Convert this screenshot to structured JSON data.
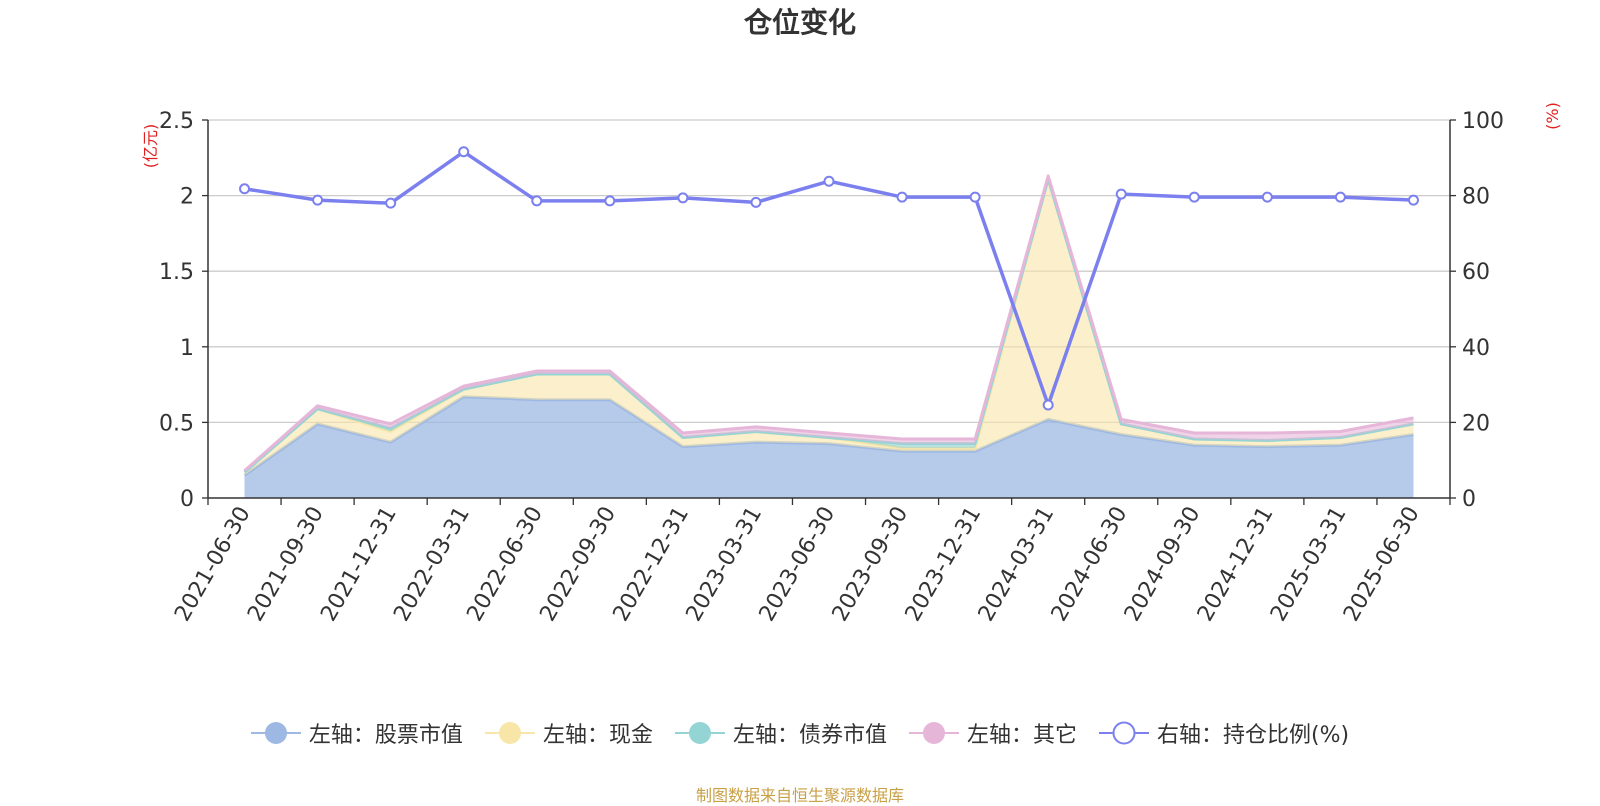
{
  "chart_data": {
    "type": "area",
    "title": "仓位变化",
    "y_left_label": "(亿元)",
    "y_right_label": "(%)",
    "y_left_lim": [
      0,
      2.5
    ],
    "y_left_ticks": [
      "0",
      "0.5",
      "1",
      "1.5",
      "2",
      "2.5"
    ],
    "y_right_lim": [
      0,
      100
    ],
    "y_right_ticks": [
      "0",
      "20",
      "40",
      "60",
      "80",
      "100"
    ],
    "grid": true,
    "legend_position": "bottom",
    "categories": [
      "2021-06-30",
      "2021-09-30",
      "2021-12-31",
      "2022-03-31",
      "2022-06-30",
      "2022-09-30",
      "2022-12-31",
      "2023-03-31",
      "2023-06-30",
      "2023-09-30",
      "2023-12-31",
      "2024-03-31",
      "2024-06-30",
      "2024-09-30",
      "2024-12-31",
      "2025-03-31",
      "2025-06-30"
    ],
    "stacked_series": [
      {
        "name": "左轴：股票市值",
        "axis": "left",
        "color": "#9db8e2",
        "values": [
          0.15,
          0.49,
          0.37,
          0.67,
          0.65,
          0.65,
          0.34,
          0.37,
          0.36,
          0.31,
          0.31,
          0.52,
          0.42,
          0.35,
          0.34,
          0.35,
          0.42
        ]
      },
      {
        "name": "左轴：现金",
        "axis": "left",
        "color": "#f8e6a8",
        "values": [
          0.02,
          0.1,
          0.07,
          0.05,
          0.17,
          0.17,
          0.06,
          0.07,
          0.04,
          0.02,
          0.02,
          1.59,
          0.07,
          0.04,
          0.04,
          0.05,
          0.07
        ]
      },
      {
        "name": "左轴：债券市值",
        "axis": "left",
        "color": "#94d4d4",
        "values": [
          0.0,
          0.0,
          0.02,
          0.0,
          0.0,
          0.0,
          0.0,
          0.0,
          0.0,
          0.03,
          0.03,
          0.0,
          0.0,
          0.0,
          0.0,
          0.0,
          0.0
        ]
      },
      {
        "name": "左轴：其它",
        "axis": "left",
        "color": "#e6b6d9",
        "values": [
          0.01,
          0.02,
          0.03,
          0.02,
          0.02,
          0.02,
          0.03,
          0.03,
          0.03,
          0.03,
          0.03,
          0.02,
          0.03,
          0.04,
          0.05,
          0.04,
          0.04
        ]
      }
    ],
    "line_series": {
      "name": "右轴：持仓比例(%)",
      "axis": "right",
      "color": "#7b80ee",
      "values": [
        81.8,
        78.8,
        78.0,
        91.6,
        78.6,
        78.6,
        79.4,
        78.2,
        83.8,
        79.6,
        79.6,
        24.6,
        80.4,
        79.6,
        79.6,
        79.6,
        78.8
      ]
    }
  },
  "source_note": "制图数据来自恒生聚源数据库"
}
